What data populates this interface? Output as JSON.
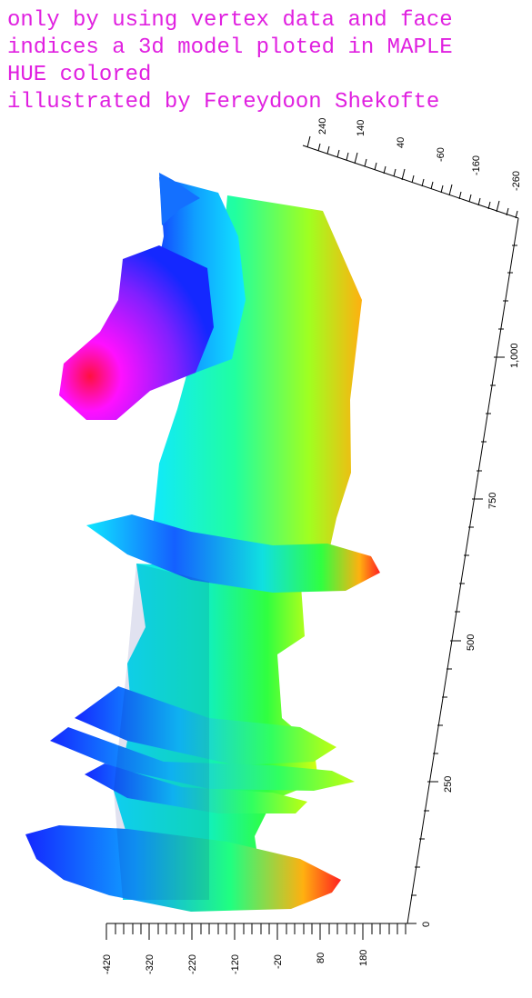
{
  "caption": {
    "line1": "only by using vertex data and face",
    "line2": "indices a 3d model ploted in MAPLE",
    "line3": "HUE colored",
    "line4": "illustrated by Fereydoon Shekofte"
  },
  "figure": {
    "subject": "chess knight 3d model",
    "coloring": "HUE",
    "colors": {
      "magenta": "#ff10ff",
      "red": "#ff1010",
      "blue": "#1428ff",
      "cyan": "#10e8ff",
      "green": "#20ff40",
      "yellow": "#e8ff10",
      "orange": "#ff8a10",
      "axis": "#000000",
      "caption": "#e020e0"
    }
  },
  "axes": {
    "right_axis_ticks": [
      "0",
      "250",
      "500",
      "750",
      "1,000"
    ],
    "top_axis_ticks": [
      "240",
      "140",
      "40",
      "-60",
      "-160",
      "-260"
    ],
    "bottom_axis_ticks": [
      "-420",
      "-320",
      "-220",
      "-120",
      "-20",
      "80",
      "180"
    ]
  }
}
